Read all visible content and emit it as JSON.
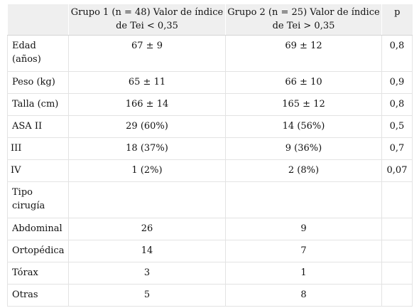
{
  "table": {
    "headers": [
      "",
      "Grupo 1 (n = 48) Valor de índice de Tei < 0,35",
      "Grupo 2 (n = 25) Valor de índice de Tei > 0,35",
      "p"
    ],
    "rows": [
      [
        "Edad (años)",
        "67 ± 9",
        "69 ± 12",
        "0,8"
      ],
      [
        "Peso (kg)",
        "65 ± 11",
        "66 ± 10",
        "0,9"
      ],
      [
        "Talla (cm)",
        "166 ± 14",
        "165 ± 12",
        "0,8"
      ],
      [
        "ASA II",
        "29 (60%)",
        "14 (56%)",
        "0,5"
      ],
      [
        " III",
        "18 (37%)",
        "9 (36%)",
        "0,7"
      ],
      [
        " IV",
        "1 (2%)",
        "2 (8%)",
        "0,07"
      ],
      [
        "Tipo cirugía",
        "",
        "",
        ""
      ],
      [
        "Abdominal",
        "26",
        "9",
        ""
      ],
      [
        "Ortopédica",
        "14",
        "7",
        ""
      ],
      [
        "Tórax",
        "3",
        "1",
        ""
      ],
      [
        "Otras",
        "5",
        "8",
        ""
      ]
    ]
  }
}
